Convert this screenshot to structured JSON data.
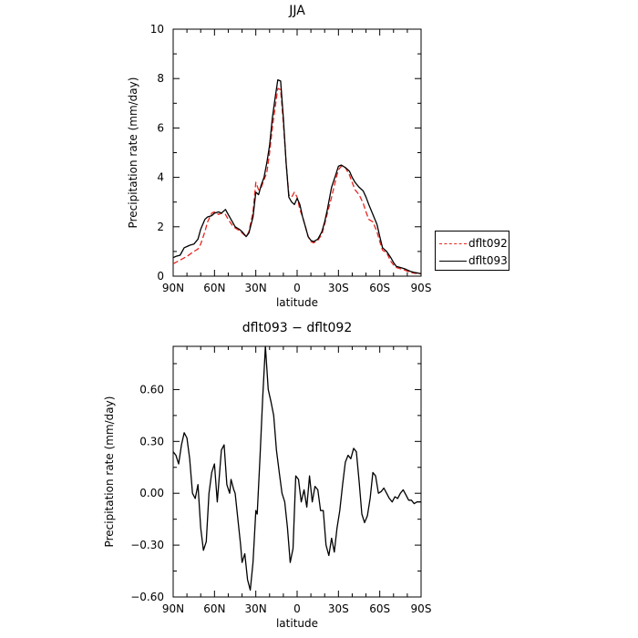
{
  "chart_data": [
    {
      "type": "line",
      "title": "JJA",
      "xlabel": "latitude",
      "ylabel": "Precipitation rate (mm/day)",
      "xlim": [
        90,
        -90
      ],
      "ylim": [
        0,
        10
      ],
      "xticks": [
        90,
        60,
        30,
        0,
        -30,
        -60,
        -90
      ],
      "xticklabels": [
        "90N",
        "60N",
        "30N",
        "0",
        "30S",
        "60S",
        "90S"
      ],
      "yticks": [
        0,
        2,
        4,
        6,
        8,
        10
      ],
      "yticklabels": [
        "0",
        "2",
        "4",
        "6",
        "8",
        "10"
      ],
      "legend_position": "right",
      "series": [
        {
          "name": "dflt092",
          "color": "#e8251f",
          "dash": "dashed",
          "x": [
            90,
            85,
            80,
            75,
            72,
            70,
            67,
            65,
            62,
            60,
            57,
            55,
            52,
            50,
            47,
            45,
            42,
            40,
            37,
            35,
            32,
            30,
            28,
            26,
            24,
            22,
            20,
            18,
            16,
            14,
            12,
            10,
            8,
            6,
            4,
            2,
            0,
            -2,
            -4,
            -6,
            -8,
            -10,
            -12,
            -15,
            -18,
            -20,
            -22,
            -25,
            -28,
            -30,
            -32,
            -35,
            -38,
            -40,
            -42,
            -45,
            -48,
            -50,
            -52,
            -55,
            -58,
            -60,
            -62,
            -65,
            -68,
            -70,
            -72,
            -75,
            -78,
            -80,
            -82,
            -85,
            -88,
            -90
          ],
          "y": [
            0.5,
            0.65,
            0.8,
            1.0,
            1.1,
            1.3,
            1.8,
            2.2,
            2.55,
            2.6,
            2.5,
            2.55,
            2.5,
            2.3,
            2.05,
            1.95,
            1.85,
            1.75,
            1.6,
            1.8,
            2.6,
            3.8,
            3.5,
            3.6,
            3.9,
            4.2,
            5.0,
            6.0,
            6.8,
            7.6,
            7.55,
            6.2,
            4.6,
            3.3,
            3.2,
            3.4,
            3.2,
            2.7,
            2.4,
            2.0,
            1.6,
            1.4,
            1.35,
            1.45,
            1.7,
            2.1,
            2.55,
            3.2,
            3.9,
            4.3,
            4.45,
            4.4,
            4.1,
            3.8,
            3.5,
            3.3,
            2.95,
            2.6,
            2.3,
            2.2,
            1.8,
            1.4,
            1.05,
            0.95,
            0.6,
            0.45,
            0.35,
            0.3,
            0.25,
            0.2,
            0.15,
            0.12,
            0.1,
            0.1
          ]
        },
        {
          "name": "dflt093",
          "color": "#000000",
          "dash": "solid",
          "x": [
            90,
            88,
            85,
            82,
            80,
            78,
            75,
            72,
            70,
            67,
            65,
            62,
            60,
            57,
            55,
            52,
            50,
            47,
            45,
            42,
            40,
            37,
            35,
            32,
            30,
            28,
            26,
            24,
            22,
            20,
            18,
            16,
            14,
            12,
            10,
            8,
            6,
            4,
            2,
            0,
            -2,
            -4,
            -6,
            -8,
            -10,
            -12,
            -15,
            -18,
            -20,
            -22,
            -25,
            -28,
            -30,
            -32,
            -35,
            -38,
            -40,
            -42,
            -45,
            -48,
            -50,
            -52,
            -55,
            -58,
            -60,
            -62,
            -65,
            -68,
            -70,
            -72,
            -75,
            -78,
            -80,
            -82,
            -85,
            -88,
            -90
          ],
          "y": [
            0.75,
            0.8,
            0.85,
            1.15,
            1.2,
            1.25,
            1.3,
            1.5,
            1.9,
            2.3,
            2.4,
            2.45,
            2.55,
            2.6,
            2.55,
            2.7,
            2.5,
            2.2,
            2.0,
            1.9,
            1.8,
            1.6,
            1.75,
            2.4,
            3.4,
            3.3,
            3.7,
            4.0,
            4.6,
            5.3,
            6.4,
            7.2,
            7.95,
            7.9,
            6.4,
            4.6,
            3.2,
            3.0,
            2.9,
            3.15,
            2.9,
            2.4,
            2.0,
            1.6,
            1.45,
            1.4,
            1.5,
            1.8,
            2.2,
            2.7,
            3.6,
            4.1,
            4.45,
            4.5,
            4.4,
            4.25,
            4.0,
            3.8,
            3.6,
            3.45,
            3.2,
            2.9,
            2.5,
            2.1,
            1.6,
            1.15,
            1.0,
            0.75,
            0.55,
            0.4,
            0.35,
            0.3,
            0.25,
            0.2,
            0.15,
            0.12,
            0.1
          ]
        }
      ]
    },
    {
      "type": "line",
      "title": "dflt093 − dflt092",
      "xlabel": "latitude",
      "ylabel": "Precipitation rate (mm/day)",
      "xlim": [
        90,
        -90
      ],
      "ylim": [
        -0.6,
        0.85
      ],
      "xticks": [
        90,
        60,
        30,
        0,
        -30,
        -60,
        -90
      ],
      "xticklabels": [
        "90N",
        "60N",
        "30N",
        "0",
        "30S",
        "60S",
        "90S"
      ],
      "yticks": [
        -0.6,
        -0.3,
        0,
        0.3,
        0.6
      ],
      "yticklabels": [
        "−0.60",
        "−0.30",
        "0.00",
        "0.30",
        "0.60"
      ],
      "series": [
        {
          "name": "",
          "color": "#000000",
          "dash": "solid",
          "x": [
            90,
            88,
            86,
            84,
            82,
            80,
            78,
            76,
            74,
            72,
            70,
            68,
            66,
            64,
            62,
            60,
            58,
            56,
            55,
            53,
            51,
            49,
            48,
            46,
            45,
            43,
            41,
            40,
            38,
            36,
            34,
            32,
            30,
            29,
            27,
            25,
            23,
            21,
            19,
            17,
            15,
            13,
            11,
            9,
            7,
            5,
            3,
            1,
            -1,
            -3,
            -5,
            -7,
            -9,
            -11,
            -13,
            -15,
            -17,
            -19,
            -21,
            -23,
            -25,
            -27,
            -29,
            -31,
            -33,
            -35,
            -37,
            -39,
            -41,
            -43,
            -45,
            -47,
            -49,
            -51,
            -53,
            -55,
            -57,
            -59,
            -61,
            -63,
            -65,
            -67,
            -69,
            -71,
            -73,
            -75,
            -77,
            -79,
            -81,
            -83,
            -85,
            -87,
            -89,
            -90
          ],
          "y": [
            0.24,
            0.22,
            0.17,
            0.28,
            0.35,
            0.32,
            0.2,
            0.0,
            -0.03,
            0.05,
            -0.2,
            -0.33,
            -0.28,
            0.0,
            0.12,
            0.17,
            -0.05,
            0.15,
            0.25,
            0.28,
            0.05,
            0.0,
            0.08,
            0.02,
            0.0,
            -0.15,
            -0.3,
            -0.4,
            -0.35,
            -0.5,
            -0.56,
            -0.4,
            -0.1,
            -0.12,
            0.2,
            0.55,
            0.85,
            0.6,
            0.53,
            0.45,
            0.25,
            0.12,
            0.0,
            -0.05,
            -0.2,
            -0.4,
            -0.32,
            0.1,
            0.08,
            -0.05,
            0.02,
            -0.08,
            0.1,
            -0.05,
            0.04,
            0.02,
            -0.1,
            -0.1,
            -0.3,
            -0.36,
            -0.26,
            -0.34,
            -0.2,
            -0.1,
            0.05,
            0.18,
            0.22,
            0.2,
            0.26,
            0.24,
            0.07,
            -0.12,
            -0.17,
            -0.13,
            -0.03,
            0.12,
            0.1,
            0.0,
            0.01,
            0.03,
            0.0,
            -0.03,
            -0.05,
            -0.02,
            -0.03,
            0.0,
            0.02,
            -0.01,
            -0.04,
            -0.04,
            -0.06,
            -0.05,
            -0.05,
            -0.05
          ]
        }
      ]
    }
  ]
}
